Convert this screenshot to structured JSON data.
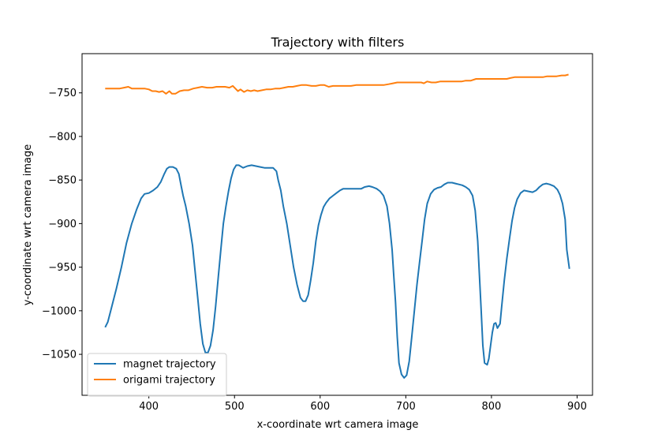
{
  "chart_data": {
    "type": "line",
    "title": "Trajectory with filters",
    "xlabel": "x-coordinate wrt camera image",
    "ylabel": "y-coordinate wrt camera image",
    "xlim": [
      322,
      918
    ],
    "ylim": [
      -1097,
      -705
    ],
    "xticks": [
      400,
      500,
      600,
      700,
      800,
      900
    ],
    "yticks": [
      -750,
      -800,
      -850,
      -900,
      -950,
      -1000,
      -1050
    ],
    "grid": false,
    "legend_position": "lower-left",
    "series": [
      {
        "name": "magnet trajectory",
        "color": "#1f77b4",
        "points": [
          [
            349,
            -1019
          ],
          [
            352,
            -1013
          ],
          [
            356,
            -998
          ],
          [
            362,
            -975
          ],
          [
            368,
            -950
          ],
          [
            374,
            -922
          ],
          [
            380,
            -900
          ],
          [
            386,
            -883
          ],
          [
            391,
            -871
          ],
          [
            395,
            -866
          ],
          [
            400,
            -865
          ],
          [
            405,
            -862
          ],
          [
            410,
            -858
          ],
          [
            414,
            -852
          ],
          [
            418,
            -843
          ],
          [
            421,
            -837
          ],
          [
            424,
            -835
          ],
          [
            428,
            -835
          ],
          [
            432,
            -837
          ],
          [
            435,
            -843
          ],
          [
            438,
            -858
          ],
          [
            440,
            -868
          ],
          [
            443,
            -880
          ],
          [
            447,
            -900
          ],
          [
            451,
            -925
          ],
          [
            454,
            -955
          ],
          [
            457,
            -985
          ],
          [
            460,
            -1015
          ],
          [
            463,
            -1038
          ],
          [
            466,
            -1048
          ],
          [
            469,
            -1048
          ],
          [
            472,
            -1040
          ],
          [
            475,
            -1022
          ],
          [
            478,
            -995
          ],
          [
            481,
            -962
          ],
          [
            484,
            -930
          ],
          [
            487,
            -900
          ],
          [
            490,
            -880
          ],
          [
            493,
            -863
          ],
          [
            496,
            -848
          ],
          [
            499,
            -838
          ],
          [
            502,
            -833
          ],
          [
            505,
            -833
          ],
          [
            510,
            -836
          ],
          [
            515,
            -834
          ],
          [
            520,
            -833
          ],
          [
            525,
            -834
          ],
          [
            530,
            -835
          ],
          [
            535,
            -836
          ],
          [
            540,
            -836
          ],
          [
            545,
            -836
          ],
          [
            549,
            -840
          ],
          [
            551,
            -850
          ],
          [
            554,
            -862
          ],
          [
            557,
            -880
          ],
          [
            561,
            -900
          ],
          [
            565,
            -925
          ],
          [
            569,
            -950
          ],
          [
            573,
            -970
          ],
          [
            577,
            -985
          ],
          [
            580,
            -989
          ],
          [
            583,
            -989
          ],
          [
            586,
            -982
          ],
          [
            589,
            -965
          ],
          [
            592,
            -945
          ],
          [
            595,
            -920
          ],
          [
            598,
            -902
          ],
          [
            601,
            -890
          ],
          [
            604,
            -881
          ],
          [
            607,
            -876
          ],
          [
            611,
            -871
          ],
          [
            615,
            -868
          ],
          [
            619,
            -865
          ],
          [
            623,
            -862
          ],
          [
            627,
            -860
          ],
          [
            632,
            -860
          ],
          [
            637,
            -860
          ],
          [
            642,
            -860
          ],
          [
            648,
            -860
          ],
          [
            652,
            -858
          ],
          [
            657,
            -857
          ],
          [
            661,
            -858
          ],
          [
            666,
            -860
          ],
          [
            670,
            -863
          ],
          [
            674,
            -868
          ],
          [
            678,
            -880
          ],
          [
            681,
            -900
          ],
          [
            684,
            -930
          ],
          [
            686,
            -960
          ],
          [
            688,
            -990
          ],
          [
            690,
            -1030
          ],
          [
            692,
            -1060
          ],
          [
            695,
            -1073
          ],
          [
            698,
            -1077
          ],
          [
            701,
            -1074
          ],
          [
            704,
            -1058
          ],
          [
            707,
            -1030
          ],
          [
            710,
            -1000
          ],
          [
            713,
            -970
          ],
          [
            716,
            -945
          ],
          [
            719,
            -920
          ],
          [
            722,
            -895
          ],
          [
            725,
            -877
          ],
          [
            729,
            -866
          ],
          [
            733,
            -861
          ],
          [
            737,
            -859
          ],
          [
            741,
            -858
          ],
          [
            745,
            -855
          ],
          [
            749,
            -853
          ],
          [
            754,
            -853
          ],
          [
            758,
            -854
          ],
          [
            762,
            -855
          ],
          [
            766,
            -856
          ],
          [
            770,
            -858
          ],
          [
            774,
            -861
          ],
          [
            778,
            -868
          ],
          [
            781,
            -885
          ],
          [
            784,
            -920
          ],
          [
            786,
            -960
          ],
          [
            788,
            -1000
          ],
          [
            790,
            -1040
          ],
          [
            792,
            -1060
          ],
          [
            795,
            -1062
          ],
          [
            797,
            -1055
          ],
          [
            799,
            -1040
          ],
          [
            801,
            -1025
          ],
          [
            803,
            -1015
          ],
          [
            805,
            -1014
          ],
          [
            807,
            -1020
          ],
          [
            810,
            -1015
          ],
          [
            812,
            -995
          ],
          [
            815,
            -965
          ],
          [
            818,
            -940
          ],
          [
            821,
            -918
          ],
          [
            824,
            -897
          ],
          [
            827,
            -882
          ],
          [
            830,
            -872
          ],
          [
            834,
            -865
          ],
          [
            838,
            -862
          ],
          [
            843,
            -863
          ],
          [
            848,
            -864
          ],
          [
            852,
            -862
          ],
          [
            856,
            -858
          ],
          [
            860,
            -855
          ],
          [
            864,
            -854
          ],
          [
            868,
            -855
          ],
          [
            873,
            -857
          ],
          [
            877,
            -861
          ],
          [
            880,
            -867
          ],
          [
            883,
            -877
          ],
          [
            886,
            -895
          ],
          [
            888,
            -930
          ],
          [
            891,
            -952
          ]
        ]
      },
      {
        "name": "origami trajectory",
        "color": "#ff7f0e",
        "points": [
          [
            349,
            -745
          ],
          [
            355,
            -745
          ],
          [
            361,
            -745
          ],
          [
            366,
            -745
          ],
          [
            371,
            -744
          ],
          [
            376,
            -743
          ],
          [
            380,
            -745
          ],
          [
            385,
            -745
          ],
          [
            390,
            -745
          ],
          [
            395,
            -745
          ],
          [
            400,
            -746
          ],
          [
            404,
            -748
          ],
          [
            408,
            -748
          ],
          [
            412,
            -749
          ],
          [
            416,
            -748
          ],
          [
            420,
            -751
          ],
          [
            424,
            -748
          ],
          [
            427,
            -751
          ],
          [
            431,
            -751
          ],
          [
            436,
            -748
          ],
          [
            441,
            -747
          ],
          [
            446,
            -747
          ],
          [
            452,
            -745
          ],
          [
            457,
            -744
          ],
          [
            462,
            -743
          ],
          [
            468,
            -744
          ],
          [
            474,
            -744
          ],
          [
            479,
            -743
          ],
          [
            484,
            -743
          ],
          [
            489,
            -743
          ],
          [
            494,
            -744
          ],
          [
            498,
            -742
          ],
          [
            501,
            -745
          ],
          [
            504,
            -748
          ],
          [
            507,
            -746
          ],
          [
            511,
            -749
          ],
          [
            515,
            -747
          ],
          [
            519,
            -748
          ],
          [
            523,
            -747
          ],
          [
            527,
            -748
          ],
          [
            532,
            -747
          ],
          [
            537,
            -746
          ],
          [
            542,
            -746
          ],
          [
            548,
            -745
          ],
          [
            553,
            -745
          ],
          [
            558,
            -744
          ],
          [
            563,
            -743
          ],
          [
            568,
            -743
          ],
          [
            573,
            -742
          ],
          [
            578,
            -741
          ],
          [
            584,
            -741
          ],
          [
            590,
            -742
          ],
          [
            595,
            -742
          ],
          [
            600,
            -741
          ],
          [
            605,
            -741
          ],
          [
            610,
            -743
          ],
          [
            615,
            -742
          ],
          [
            620,
            -742
          ],
          [
            625,
            -742
          ],
          [
            630,
            -742
          ],
          [
            636,
            -742
          ],
          [
            642,
            -741
          ],
          [
            648,
            -741
          ],
          [
            655,
            -741
          ],
          [
            662,
            -741
          ],
          [
            668,
            -741
          ],
          [
            674,
            -741
          ],
          [
            680,
            -740
          ],
          [
            685,
            -739
          ],
          [
            690,
            -738
          ],
          [
            696,
            -738
          ],
          [
            702,
            -738
          ],
          [
            708,
            -738
          ],
          [
            713,
            -738
          ],
          [
            718,
            -738
          ],
          [
            721,
            -739
          ],
          [
            725,
            -737
          ],
          [
            730,
            -738
          ],
          [
            735,
            -738
          ],
          [
            740,
            -737
          ],
          [
            745,
            -737
          ],
          [
            750,
            -737
          ],
          [
            755,
            -737
          ],
          [
            760,
            -737
          ],
          [
            765,
            -737
          ],
          [
            770,
            -736
          ],
          [
            776,
            -736
          ],
          [
            782,
            -734
          ],
          [
            788,
            -734
          ],
          [
            794,
            -734
          ],
          [
            800,
            -734
          ],
          [
            806,
            -734
          ],
          [
            812,
            -734
          ],
          [
            818,
            -734
          ],
          [
            822,
            -733
          ],
          [
            827,
            -732
          ],
          [
            832,
            -732
          ],
          [
            837,
            -732
          ],
          [
            842,
            -732
          ],
          [
            848,
            -732
          ],
          [
            855,
            -732
          ],
          [
            860,
            -732
          ],
          [
            865,
            -731
          ],
          [
            870,
            -731
          ],
          [
            876,
            -731
          ],
          [
            882,
            -730
          ],
          [
            886,
            -730
          ],
          [
            890,
            -729
          ]
        ]
      }
    ]
  }
}
